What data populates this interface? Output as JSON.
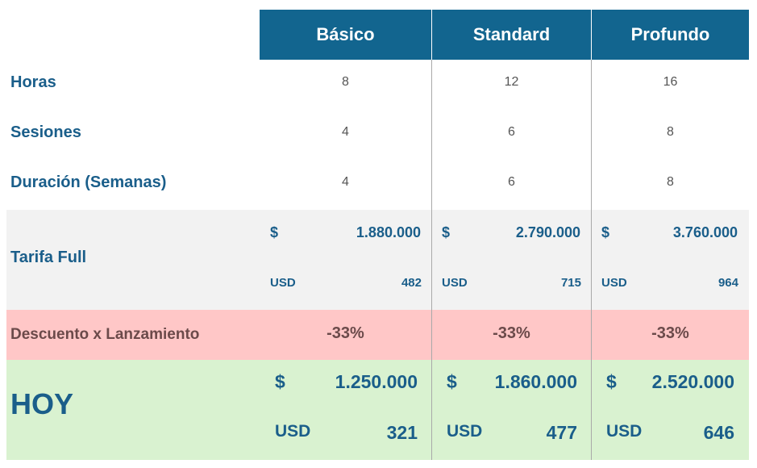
{
  "plans": [
    {
      "name": "Básico",
      "horas": "8",
      "sesiones": "4",
      "duracion": "4",
      "full_currency": "$",
      "full_amount": "1.880.000",
      "full_usd_label": "USD",
      "full_usd": "482",
      "descuento": "-33%",
      "hoy_currency": "$",
      "hoy_amount": "1.250.000",
      "hoy_usd_label": "USD",
      "hoy_usd": "321"
    },
    {
      "name": "Standard",
      "horas": "12",
      "sesiones": "6",
      "duracion": "6",
      "full_currency": "$",
      "full_amount": "2.790.000",
      "full_usd_label": "USD",
      "full_usd": "715",
      "descuento": "-33%",
      "hoy_currency": "$",
      "hoy_amount": "1.860.000",
      "hoy_usd_label": "USD",
      "hoy_usd": "477"
    },
    {
      "name": "Profundo",
      "horas": "16",
      "sesiones": "8",
      "duracion": "8",
      "full_currency": "$",
      "full_amount": "3.760.000",
      "full_usd_label": "USD",
      "full_usd": "964",
      "descuento": "-33%",
      "hoy_currency": "$",
      "hoy_amount": "2.520.000",
      "hoy_usd_label": "USD",
      "hoy_usd": "646"
    }
  ],
  "row_labels": {
    "horas": "Horas",
    "sesiones": "Sesiones",
    "duracion": "Duración (Semanas)",
    "tarifa": "Tarifa Full",
    "descuento": "Descuento x Lanzamiento",
    "hoy": "HOY"
  },
  "colors": {
    "header_bg": "#12658f",
    "label_text": "#1a5e8a",
    "full_band": "#f2f2f2",
    "discount_band": "#ffc7c7",
    "today_band": "#d9f2d0"
  }
}
